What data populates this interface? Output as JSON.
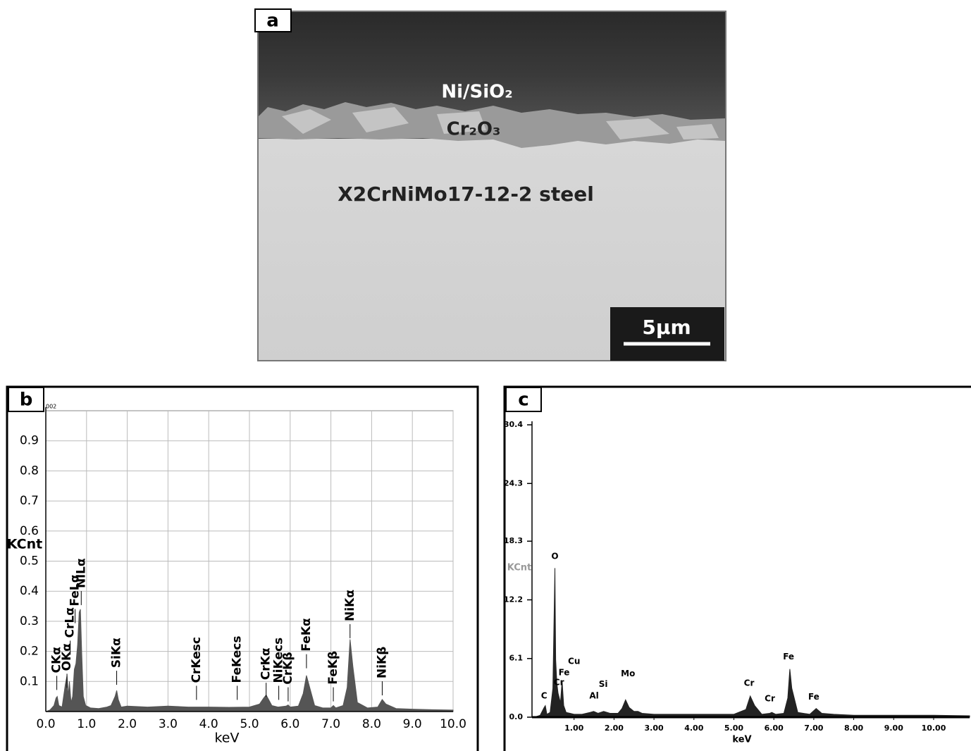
{
  "panel_a": {
    "label": "a",
    "layers": [
      "Ni/SiO₂",
      "Cr₂O₃",
      "X2CrNiMo17-12-2 steel"
    ],
    "scale_bar": "5µm"
  },
  "chart_data": [
    {
      "type": "area",
      "panel_label": "b",
      "code": "002",
      "ylabel": "KCnt",
      "xlabel": "keV",
      "color": "#555555",
      "grid": true,
      "xlim": [
        0,
        10
      ],
      "ylim": [
        0,
        1.0
      ],
      "xticks": [
        {
          "value": 0,
          "label": "0.0"
        },
        {
          "value": 1,
          "label": "1.0"
        },
        {
          "value": 2,
          "label": "2.0"
        },
        {
          "value": 3,
          "label": "3.0"
        },
        {
          "value": 4,
          "label": "4.0"
        },
        {
          "value": 5,
          "label": "5.0"
        },
        {
          "value": 6,
          "label": "6.0"
        },
        {
          "value": 7,
          "label": "7.0"
        },
        {
          "value": 8,
          "label": "8.0"
        },
        {
          "value": 9,
          "label": "9.0"
        },
        {
          "value": 10,
          "label": "10.0"
        }
      ],
      "yticks": [
        0.1,
        0.2,
        0.3,
        0.4,
        0.5,
        0.6,
        0.7,
        0.8,
        0.9
      ],
      "x": [
        0.0,
        0.1,
        0.2,
        0.25,
        0.28,
        0.32,
        0.4,
        0.48,
        0.52,
        0.55,
        0.58,
        0.62,
        0.66,
        0.7,
        0.74,
        0.78,
        0.82,
        0.85,
        0.88,
        0.92,
        0.98,
        1.1,
        1.3,
        1.5,
        1.6,
        1.7,
        1.74,
        1.78,
        1.85,
        2.0,
        2.5,
        3.0,
        3.5,
        4.0,
        4.5,
        5.0,
        5.25,
        5.35,
        5.41,
        5.47,
        5.55,
        5.7,
        5.9,
        5.95,
        6.0,
        6.2,
        6.32,
        6.4,
        6.48,
        6.6,
        6.8,
        7.0,
        7.06,
        7.12,
        7.3,
        7.4,
        7.47,
        7.54,
        7.65,
        7.9,
        8.15,
        8.26,
        8.35,
        8.6,
        9.0,
        9.5,
        10.0
      ],
      "values": [
        0,
        0.005,
        0.02,
        0.045,
        0.05,
        0.02,
        0.015,
        0.09,
        0.12,
        0.05,
        0.1,
        0.03,
        0.05,
        0.14,
        0.16,
        0.22,
        0.33,
        0.34,
        0.2,
        0.05,
        0.02,
        0.012,
        0.01,
        0.015,
        0.02,
        0.05,
        0.07,
        0.04,
        0.015,
        0.018,
        0.015,
        0.018,
        0.015,
        0.015,
        0.014,
        0.015,
        0.025,
        0.045,
        0.055,
        0.04,
        0.02,
        0.015,
        0.018,
        0.022,
        0.015,
        0.018,
        0.06,
        0.12,
        0.08,
        0.02,
        0.012,
        0.012,
        0.02,
        0.012,
        0.02,
        0.08,
        0.24,
        0.15,
        0.03,
        0.012,
        0.015,
        0.04,
        0.025,
        0.01,
        0.008,
        0.006,
        0.005
      ],
      "annotations": [
        {
          "text": "CKα",
          "x": 0.27,
          "y": 0.128
        },
        {
          "text": "OKα",
          "x": 0.52,
          "y": 0.135
        },
        {
          "text": "CrLα",
          "x": 0.6,
          "y": 0.245
        },
        {
          "text": "FeLα",
          "x": 0.72,
          "y": 0.35
        },
        {
          "text": "NiLα",
          "x": 0.87,
          "y": 0.41
        },
        {
          "text": "SiKα",
          "x": 1.74,
          "y": 0.145
        },
        {
          "text": "CrKesc",
          "x": 3.7,
          "y": 0.095
        },
        {
          "text": "FeKecs",
          "x": 4.7,
          "y": 0.095
        },
        {
          "text": "CrKα",
          "x": 5.41,
          "y": 0.105
        },
        {
          "text": "NiKecs",
          "x": 5.72,
          "y": 0.095
        },
        {
          "text": "CrKβ",
          "x": 5.95,
          "y": 0.09
        },
        {
          "text": "FeKα",
          "x": 6.4,
          "y": 0.2
        },
        {
          "text": "FeKβ",
          "x": 7.06,
          "y": 0.09
        },
        {
          "text": "NiKα",
          "x": 7.47,
          "y": 0.3
        },
        {
          "text": "NiKβ",
          "x": 8.26,
          "y": 0.11
        }
      ]
    },
    {
      "type": "area",
      "panel_label": "c",
      "ylabel": "KCnt",
      "xlabel": "keV",
      "color": "#222222",
      "grid": false,
      "xlim": [
        0,
        10.9
      ],
      "ylim": [
        0,
        30.4
      ],
      "xticks": [
        {
          "value": 1,
          "label": "1.00"
        },
        {
          "value": 2,
          "label": "2.00"
        },
        {
          "value": 3,
          "label": "3.00"
        },
        {
          "value": 4,
          "label": "4.00"
        },
        {
          "value": 5,
          "label": "5.00"
        },
        {
          "value": 6,
          "label": "6.00"
        },
        {
          "value": 7,
          "label": "7.00"
        },
        {
          "value": 8,
          "label": "8.00"
        },
        {
          "value": 9,
          "label": "9.00"
        },
        {
          "value": 10,
          "label": "10.00"
        }
      ],
      "yticks": [
        {
          "value": 0,
          "label": "0.0"
        },
        6.1,
        12.2,
        18.3,
        24.3,
        30.4
      ],
      "x": [
        0.0,
        0.15,
        0.25,
        0.28,
        0.32,
        0.4,
        0.47,
        0.5,
        0.52,
        0.54,
        0.57,
        0.6,
        0.66,
        0.7,
        0.74,
        0.8,
        0.9,
        1.0,
        1.2,
        1.4,
        1.49,
        1.6,
        1.74,
        1.9,
        2.1,
        2.2,
        2.29,
        2.38,
        2.5,
        2.6,
        2.7,
        3.0,
        3.5,
        4.0,
        4.5,
        5.0,
        5.3,
        5.41,
        5.52,
        5.7,
        5.9,
        5.95,
        6.05,
        6.25,
        6.35,
        6.4,
        6.45,
        6.6,
        6.9,
        7.06,
        7.2,
        7.5,
        8.0,
        9.0,
        10.0,
        10.9
      ],
      "values": [
        0,
        0.2,
        1.0,
        1.2,
        0.3,
        0.5,
        3,
        10.3,
        15.5,
        6,
        3.5,
        2.5,
        1.5,
        3.8,
        1.2,
        0.5,
        0.4,
        0.3,
        0.3,
        0.5,
        0.6,
        0.4,
        0.6,
        0.4,
        0.4,
        0.9,
        1.8,
        1.0,
        0.6,
        0.6,
        0.4,
        0.3,
        0.3,
        0.3,
        0.3,
        0.3,
        0.8,
        2.2,
        1.2,
        0.3,
        0.4,
        0.5,
        0.3,
        0.4,
        2.0,
        5.0,
        3.0,
        0.5,
        0.3,
        0.9,
        0.4,
        0.3,
        0.2,
        0.2,
        0.2,
        0.15
      ],
      "annotations": [
        {
          "text": "O",
          "x": 0.52,
          "y": 16.7
        },
        {
          "text": "Fe",
          "x": 0.75,
          "y": 4.6
        },
        {
          "text": "Cu",
          "x": 1.0,
          "y": 5.8
        },
        {
          "text": "Cr",
          "x": 0.62,
          "y": 3.6
        },
        {
          "text": "C",
          "x": 0.25,
          "y": 2.2
        },
        {
          "text": "Al",
          "x": 1.5,
          "y": 2.2
        },
        {
          "text": "Si",
          "x": 1.73,
          "y": 3.4
        },
        {
          "text": "Mo",
          "x": 2.35,
          "y": 4.5
        },
        {
          "text": "Cr",
          "x": 5.38,
          "y": 3.5
        },
        {
          "text": "Cr",
          "x": 5.9,
          "y": 1.9
        },
        {
          "text": "Fe",
          "x": 6.37,
          "y": 6.25
        },
        {
          "text": "Fe",
          "x": 7.0,
          "y": 2.1
        }
      ]
    }
  ]
}
